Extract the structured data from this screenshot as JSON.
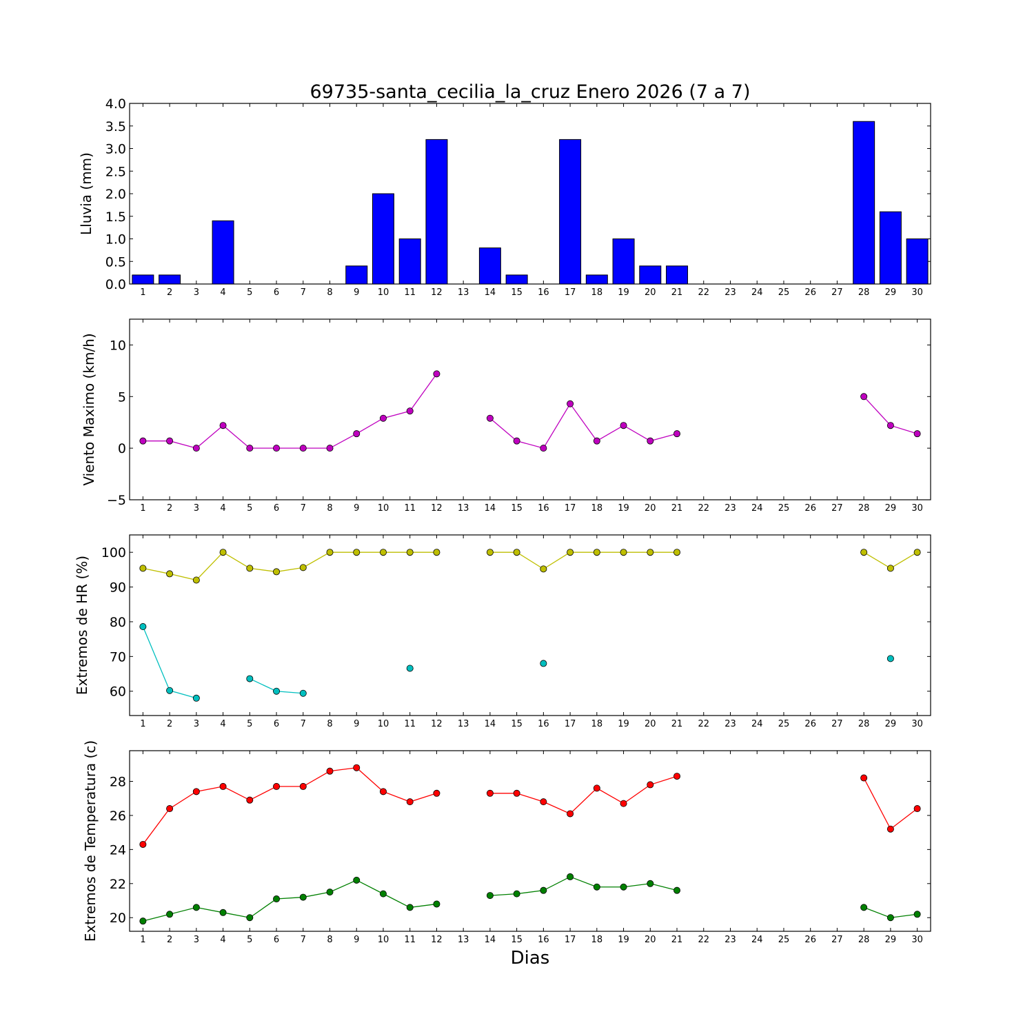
{
  "figure": {
    "title": "69735-santa_cecilia_la_cruz Enero 2026  (7 a 7)",
    "xlabel": "Dias"
  },
  "chart_data": [
    {
      "type": "bar",
      "ylabel": "Lluvia (mm)",
      "ylim": [
        0,
        4
      ],
      "yticks": [
        "0.0",
        "0.5",
        "1.0",
        "1.5",
        "2.0",
        "2.5",
        "3.0",
        "3.5",
        "4.0"
      ],
      "color": "#0000ff",
      "x": [
        1,
        2,
        3,
        4,
        5,
        6,
        7,
        8,
        9,
        10,
        11,
        12,
        13,
        14,
        15,
        16,
        17,
        18,
        19,
        20,
        21,
        22,
        23,
        24,
        25,
        26,
        27,
        28,
        29,
        30
      ],
      "values": [
        0.2,
        0.2,
        0,
        1.4,
        0,
        0,
        0,
        0,
        0.4,
        2.0,
        1.0,
        3.2,
        null,
        0.8,
        0.2,
        0,
        3.2,
        0.2,
        1.0,
        0.4,
        0.4,
        null,
        null,
        null,
        null,
        null,
        null,
        3.6,
        1.6,
        1.0
      ]
    },
    {
      "type": "line",
      "ylabel": "Viento Maximo (km/h)",
      "ylim": [
        -5,
        12.5
      ],
      "yticks": [
        "−5",
        "0",
        "5",
        "10"
      ],
      "x": [
        1,
        2,
        3,
        4,
        5,
        6,
        7,
        8,
        9,
        10,
        11,
        12,
        13,
        14,
        15,
        16,
        17,
        18,
        19,
        20,
        21,
        22,
        23,
        24,
        25,
        26,
        27,
        28,
        29,
        30
      ],
      "series": [
        {
          "color": "#bf00bf",
          "values": [
            0.7,
            0.7,
            0,
            2.2,
            0,
            0,
            0,
            0,
            1.4,
            2.9,
            3.6,
            7.2,
            null,
            2.9,
            0.7,
            0,
            4.3,
            0.7,
            2.2,
            0.7,
            1.4,
            null,
            null,
            null,
            null,
            null,
            null,
            5.0,
            2.2,
            1.4
          ]
        }
      ]
    },
    {
      "type": "line",
      "ylabel": "Extremos de HR (%)",
      "ylim": [
        53,
        105
      ],
      "yticks": [
        "60",
        "70",
        "80",
        "90",
        "100"
      ],
      "x": [
        1,
        2,
        3,
        4,
        5,
        6,
        7,
        8,
        9,
        10,
        11,
        12,
        13,
        14,
        15,
        16,
        17,
        18,
        19,
        20,
        21,
        22,
        23,
        24,
        25,
        26,
        27,
        28,
        29,
        30
      ],
      "series": [
        {
          "color": "#bfbf00",
          "values": [
            95.4,
            93.8,
            92.0,
            100,
            95.4,
            94.4,
            95.6,
            100,
            100,
            100,
            100,
            100,
            null,
            100,
            100,
            95.2,
            100,
            100,
            100,
            100,
            100,
            null,
            null,
            null,
            null,
            null,
            null,
            100,
            95.4,
            100
          ]
        },
        {
          "color": "#00bfbf",
          "values": [
            78.6,
            60.2,
            58.0,
            null,
            63.6,
            60.0,
            59.4,
            null,
            null,
            null,
            66.6,
            null,
            null,
            null,
            null,
            68.0,
            null,
            null,
            null,
            null,
            null,
            null,
            null,
            null,
            null,
            null,
            null,
            null,
            69.4,
            null
          ]
        }
      ]
    },
    {
      "type": "line",
      "ylabel": "Extremos de Temperatura (c)",
      "ylim": [
        19.2,
        29.8
      ],
      "yticks": [
        "20",
        "22",
        "24",
        "26",
        "28"
      ],
      "x": [
        1,
        2,
        3,
        4,
        5,
        6,
        7,
        8,
        9,
        10,
        11,
        12,
        13,
        14,
        15,
        16,
        17,
        18,
        19,
        20,
        21,
        22,
        23,
        24,
        25,
        26,
        27,
        28,
        29,
        30
      ],
      "series": [
        {
          "color": "#ff0000",
          "values": [
            24.3,
            26.4,
            27.4,
            27.7,
            26.9,
            27.7,
            27.7,
            28.6,
            28.8,
            27.4,
            26.8,
            27.3,
            null,
            27.3,
            27.3,
            26.8,
            26.1,
            27.6,
            26.7,
            27.8,
            28.3,
            null,
            null,
            null,
            null,
            null,
            null,
            28.2,
            25.2,
            26.4
          ]
        },
        {
          "color": "#008000",
          "values": [
            19.8,
            20.2,
            20.6,
            20.3,
            20.0,
            21.1,
            21.2,
            21.5,
            22.2,
            21.4,
            20.6,
            20.8,
            null,
            21.3,
            21.4,
            21.6,
            22.4,
            21.8,
            21.8,
            22.0,
            21.6,
            null,
            null,
            null,
            null,
            null,
            null,
            20.6,
            20.0,
            20.2
          ]
        }
      ]
    }
  ]
}
